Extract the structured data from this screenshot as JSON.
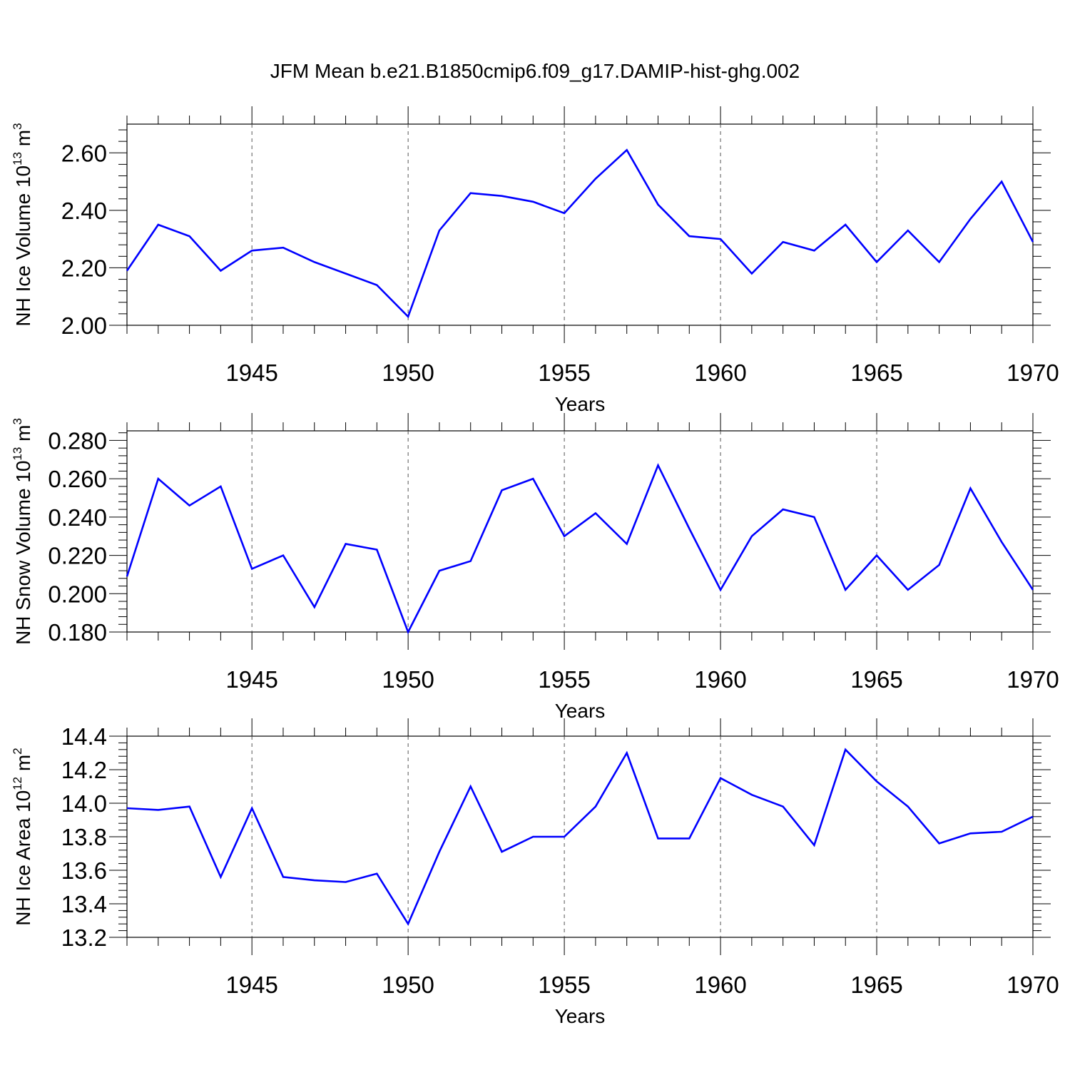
{
  "title": "JFM Mean b.e21.B1850cmip6.f09_g17.DAMIP-hist-ghg.002",
  "colors": {
    "line": "#0000ff",
    "axis": "#000000",
    "grid": "#555555"
  },
  "chart_data": [
    {
      "type": "line",
      "ylabel": {
        "text": "NH Ice Volume 10",
        "sup": "13",
        "unit": " m",
        "unit_sup": "3"
      },
      "xlabel": "Years",
      "xlim": [
        1941,
        1970
      ],
      "ylim": [
        2.0,
        2.7
      ],
      "yticks": [
        2.0,
        2.2,
        2.4,
        2.6
      ],
      "ytick_labels": [
        "2.00",
        "2.20",
        "2.40",
        "2.60"
      ],
      "xticks": [
        1945,
        1950,
        1955,
        1960,
        1965,
        1970
      ],
      "xtick_labels": [
        "1945",
        "1950",
        "1955",
        "1960",
        "1965",
        "1970"
      ],
      "grid_x": [
        1945,
        1950,
        1955,
        1960,
        1965
      ],
      "x": [
        1941,
        1942,
        1943,
        1944,
        1945,
        1946,
        1947,
        1948,
        1949,
        1950,
        1951,
        1952,
        1953,
        1954,
        1955,
        1956,
        1957,
        1958,
        1959,
        1960,
        1961,
        1962,
        1963,
        1964,
        1965,
        1966,
        1967,
        1968,
        1969,
        1970
      ],
      "series": [
        {
          "values": [
            2.19,
            2.35,
            2.31,
            2.19,
            2.26,
            2.27,
            2.22,
            2.18,
            2.14,
            2.03,
            2.33,
            2.46,
            2.45,
            2.43,
            2.39,
            2.51,
            2.61,
            2.42,
            2.31,
            2.3,
            2.18,
            2.29,
            2.26,
            2.35,
            2.22,
            2.33,
            2.22,
            2.37,
            2.5,
            2.29
          ]
        }
      ]
    },
    {
      "type": "line",
      "ylabel": {
        "text": "NH Snow Volume 10",
        "sup": "13",
        "unit": " m",
        "unit_sup": "3"
      },
      "xlabel": "Years",
      "xlim": [
        1941,
        1970
      ],
      "ylim": [
        0.18,
        0.285
      ],
      "yticks": [
        0.18,
        0.2,
        0.22,
        0.24,
        0.26,
        0.28
      ],
      "ytick_labels": [
        "0.180",
        "0.200",
        "0.220",
        "0.240",
        "0.260",
        "0.280"
      ],
      "xticks": [
        1945,
        1950,
        1955,
        1960,
        1965,
        1970
      ],
      "xtick_labels": [
        "1945",
        "1950",
        "1955",
        "1960",
        "1965",
        "1970"
      ],
      "grid_x": [
        1945,
        1950,
        1955,
        1960,
        1965
      ],
      "x": [
        1941,
        1942,
        1943,
        1944,
        1945,
        1946,
        1947,
        1948,
        1949,
        1950,
        1951,
        1952,
        1953,
        1954,
        1955,
        1956,
        1957,
        1958,
        1959,
        1960,
        1961,
        1962,
        1963,
        1964,
        1965,
        1966,
        1967,
        1968,
        1969,
        1970
      ],
      "series": [
        {
          "values": [
            0.209,
            0.26,
            0.246,
            0.256,
            0.213,
            0.22,
            0.193,
            0.226,
            0.223,
            0.18,
            0.212,
            0.217,
            0.254,
            0.26,
            0.23,
            0.242,
            0.226,
            0.267,
            0.234,
            0.202,
            0.23,
            0.244,
            0.24,
            0.202,
            0.22,
            0.202,
            0.215,
            0.255,
            0.227,
            0.202
          ]
        }
      ]
    },
    {
      "type": "line",
      "ylabel": {
        "text": "NH Ice Area 10",
        "sup": "12",
        "unit": " m",
        "unit_sup": "2"
      },
      "xlabel": "Years",
      "xlim": [
        1941,
        1970
      ],
      "ylim": [
        13.2,
        14.4
      ],
      "yticks": [
        13.2,
        13.4,
        13.6,
        13.8,
        14.0,
        14.2,
        14.4
      ],
      "ytick_labels": [
        "13.2",
        "13.4",
        "13.6",
        "13.8",
        "14.0",
        "14.2",
        "14.4"
      ],
      "xticks": [
        1945,
        1950,
        1955,
        1960,
        1965,
        1970
      ],
      "xtick_labels": [
        "1945",
        "1950",
        "1955",
        "1960",
        "1965",
        "1970"
      ],
      "grid_x": [
        1945,
        1950,
        1955,
        1960,
        1965
      ],
      "x": [
        1941,
        1942,
        1943,
        1944,
        1945,
        1946,
        1947,
        1948,
        1949,
        1950,
        1951,
        1952,
        1953,
        1954,
        1955,
        1956,
        1957,
        1958,
        1959,
        1960,
        1961,
        1962,
        1963,
        1964,
        1965,
        1966,
        1967,
        1968,
        1969,
        1970
      ],
      "series": [
        {
          "values": [
            13.97,
            13.96,
            13.98,
            13.56,
            13.97,
            13.56,
            13.54,
            13.53,
            13.58,
            13.28,
            13.71,
            14.1,
            13.71,
            13.8,
            13.8,
            13.98,
            14.3,
            13.79,
            13.79,
            14.15,
            14.05,
            13.98,
            13.75,
            14.32,
            14.13,
            13.98,
            13.76,
            13.82,
            13.83,
            13.92
          ]
        }
      ]
    }
  ]
}
